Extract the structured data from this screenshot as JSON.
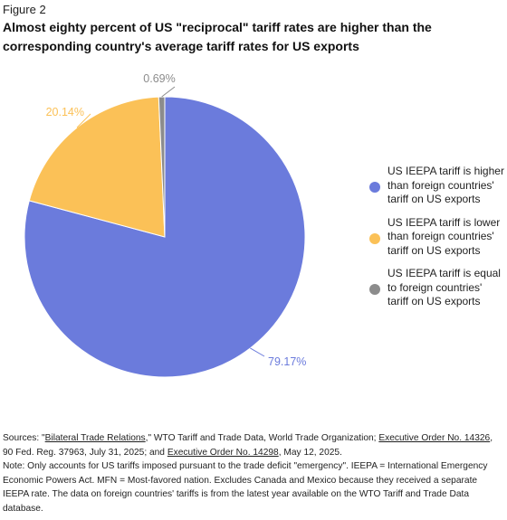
{
  "figure_label": "Figure 2",
  "title": "Almost eighty percent of US \"reciprocal\" tariff rates are higher than the corresponding country's average tariff rates for US exports",
  "colors": {
    "higher": "#6b7bdc",
    "lower": "#fbc157",
    "equal": "#8c8c8c"
  },
  "chart_data": {
    "type": "pie",
    "slices": [
      {
        "label": "US IEEPA tariff is higher than foreign countries' tariff on US exports",
        "value": 79.17,
        "value_label": "79.17%",
        "color": "#6b7bdc"
      },
      {
        "label": "US IEEPA tariff is lower than foreign countries' tariff on US exports",
        "value": 20.14,
        "value_label": "20.14%",
        "color": "#fbc157"
      },
      {
        "label": "US IEEPA tariff is equal to foreign countries' tariff on US exports",
        "value": 0.69,
        "value_label": "0.69%",
        "color": "#8c8c8c"
      }
    ],
    "legend_position": "right"
  },
  "sources": {
    "prefix": "Sources: \"",
    "link1": "Bilateral Trade Relations",
    "text1": ",\" WTO Tariff and Trade Data, World Trade Organization; ",
    "link2": "Executive Order No. 14326",
    "text2": ", 90 Fed. Reg. 37963, July 31, 2025; and ",
    "link3": "Executive Order No. 14298",
    "text3": ", May 12, 2025."
  },
  "note": "Note: Only accounts for US tariffs imposed pursuant to the trade deficit \"emergency\". IEEPA = International Emergency Economic Powers Act. MFN = Most-favored nation. Excludes Canada and Mexico because they received a separate IEEPA rate. The data on foreign countries' tariffs is from the latest year available on the WTO Tariff and Trade Data database."
}
